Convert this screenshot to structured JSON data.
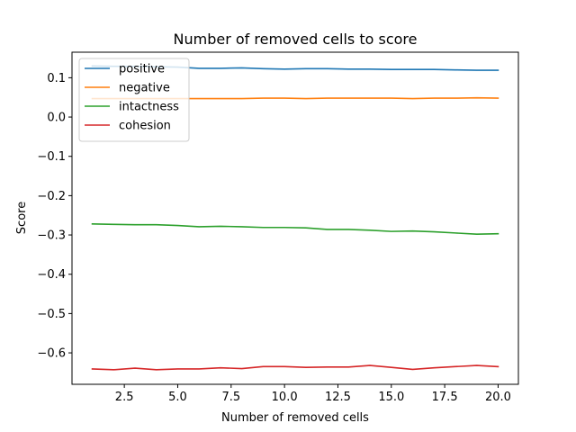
{
  "chart_data": {
    "type": "line",
    "title": "Number of removed cells to score",
    "xlabel": "Number of removed cells",
    "ylabel": "Score",
    "xlim": [
      0.05,
      20.95
    ],
    "ylim": [
      -0.68,
      0.165
    ],
    "xticks": [
      2.5,
      5.0,
      7.5,
      10.0,
      12.5,
      15.0,
      17.5,
      20.0
    ],
    "xtick_labels": [
      "2.5",
      "5.0",
      "7.5",
      "10.0",
      "12.5",
      "15.0",
      "17.5",
      "20.0"
    ],
    "yticks": [
      0.1,
      0.0,
      -0.1,
      -0.2,
      -0.3,
      -0.4,
      -0.5,
      -0.6
    ],
    "ytick_labels": [
      "0.1",
      "0.0",
      "−0.1",
      "−0.2",
      "−0.3",
      "−0.4",
      "−0.5",
      "−0.6"
    ],
    "grid": false,
    "legend_position": "top-left",
    "x": [
      1,
      2,
      3,
      4,
      5,
      6,
      7,
      8,
      9,
      10,
      11,
      12,
      13,
      14,
      15,
      16,
      17,
      18,
      19,
      20
    ],
    "series": [
      {
        "name": "positive",
        "color": "#1f77b4",
        "values": [
          0.13,
          0.129,
          0.129,
          0.128,
          0.127,
          0.124,
          0.124,
          0.125,
          0.123,
          0.122,
          0.123,
          0.123,
          0.122,
          0.122,
          0.121,
          0.121,
          0.121,
          0.12,
          0.119,
          0.119
        ]
      },
      {
        "name": "negative",
        "color": "#ff7f0e",
        "values": [
          0.047,
          0.047,
          0.047,
          0.047,
          0.047,
          0.047,
          0.047,
          0.047,
          0.048,
          0.048,
          0.047,
          0.048,
          0.048,
          0.048,
          0.048,
          0.047,
          0.048,
          0.048,
          0.049,
          0.048
        ]
      },
      {
        "name": "intactness",
        "color": "#2ca02c",
        "values": [
          -0.272,
          -0.273,
          -0.274,
          -0.274,
          -0.276,
          -0.279,
          -0.278,
          -0.279,
          -0.281,
          -0.281,
          -0.282,
          -0.286,
          -0.286,
          -0.288,
          -0.291,
          -0.29,
          -0.292,
          -0.295,
          -0.298,
          -0.297
        ]
      },
      {
        "name": "cohesion",
        "color": "#d62728",
        "values": [
          -0.641,
          -0.643,
          -0.639,
          -0.643,
          -0.641,
          -0.641,
          -0.638,
          -0.64,
          -0.635,
          -0.635,
          -0.637,
          -0.636,
          -0.636,
          -0.632,
          -0.637,
          -0.642,
          -0.638,
          -0.635,
          -0.632,
          -0.635
        ]
      }
    ]
  }
}
